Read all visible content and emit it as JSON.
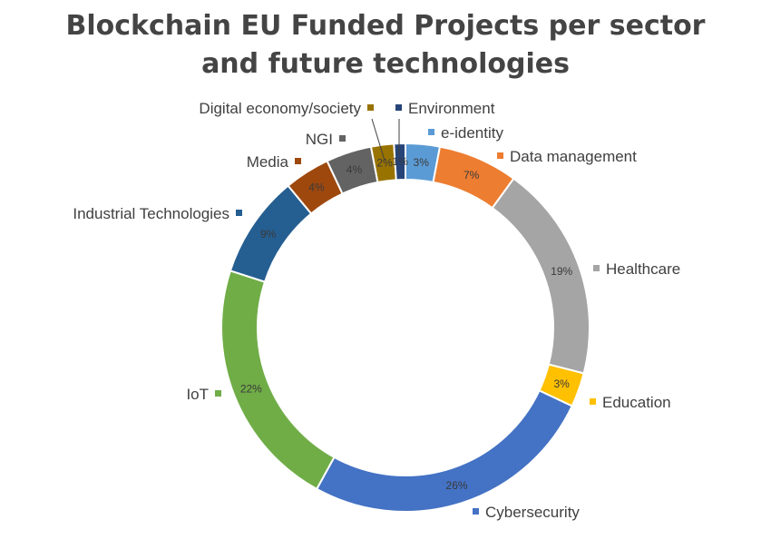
{
  "chart_data": {
    "type": "pie",
    "title": "Blockchain EU Funded Projects per sector and future technologies",
    "title_lines": [
      "Blockchain EU Funded Projects per sector",
      "and future technologies"
    ],
    "donut": true,
    "slices": [
      {
        "label": "e-identity",
        "value": 3,
        "value_label": "3%",
        "color": "#5b9bd5"
      },
      {
        "label": "Data management",
        "value": 7,
        "value_label": "7%",
        "color": "#ed7d31"
      },
      {
        "label": "Healthcare",
        "value": 19,
        "value_label": "19%",
        "color": "#a5a5a5"
      },
      {
        "label": "Education",
        "value": 3,
        "value_label": "3%",
        "color": "#ffc000"
      },
      {
        "label": "Cybersecurity",
        "value": 26,
        "value_label": "26%",
        "color": "#4472c4"
      },
      {
        "label": "IoT",
        "value": 22,
        "value_label": "22%",
        "color": "#70ad47"
      },
      {
        "label": "Industrial Technologies",
        "value": 9,
        "value_label": "9%",
        "color": "#255e91"
      },
      {
        "label": "Media",
        "value": 4,
        "value_label": "4%",
        "color": "#9e480e"
      },
      {
        "label": "NGI",
        "value": 4,
        "value_label": "4%",
        "color": "#636363"
      },
      {
        "label": "Digital economy/society",
        "value": 2,
        "value_label": "2%",
        "color": "#997300"
      },
      {
        "label": "Environment",
        "value": 1,
        "value_label": "1%",
        "color": "#264478"
      }
    ],
    "legend": "labels beside slices"
  }
}
